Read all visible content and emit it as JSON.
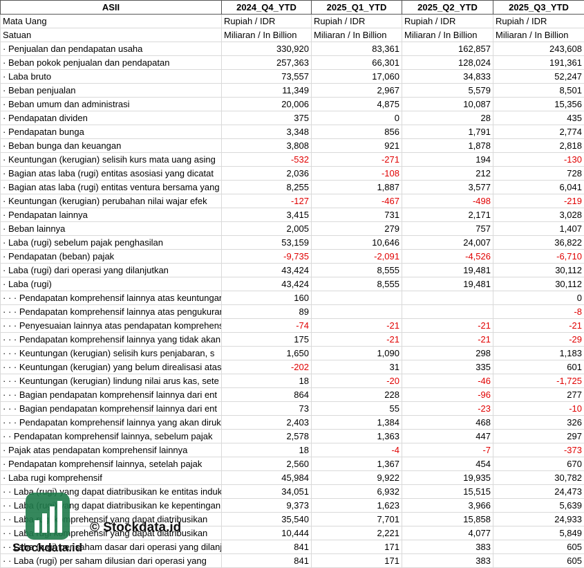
{
  "table": {
    "header": [
      "ASII",
      "2024_Q4_YTD",
      "2025_Q1_YTD",
      "2025_Q2_YTD",
      "2025_Q3_YTD"
    ],
    "rows": [
      {
        "label": "Mata Uang",
        "cells": [
          "Rupiah / IDR",
          "Rupiah / IDR",
          "Rupiah / IDR",
          "Rupiah / IDR"
        ]
      },
      {
        "label": "Satuan",
        "cells": [
          "Miliaran / In Billion",
          "Miliaran / In Billion",
          "Miliaran / In Billion",
          "Miliaran / In Billion"
        ]
      },
      {
        "label": "· Penjualan dan pendapatan usaha",
        "cells": [
          "330,920",
          "83,361",
          "162,857",
          "243,608"
        ]
      },
      {
        "label": "· Beban pokok penjualan dan pendapatan",
        "cells": [
          "257,363",
          "66,301",
          "128,024",
          "191,361"
        ]
      },
      {
        "label": "· Laba bruto",
        "cells": [
          "73,557",
          "17,060",
          "34,833",
          "52,247"
        ]
      },
      {
        "label": "· Beban penjualan",
        "cells": [
          "11,349",
          "2,967",
          "5,579",
          "8,501"
        ]
      },
      {
        "label": "· Beban umum dan administrasi",
        "cells": [
          "20,006",
          "4,875",
          "10,087",
          "15,356"
        ]
      },
      {
        "label": "· Pendapatan dividen",
        "cells": [
          "375",
          "0",
          "28",
          "435"
        ]
      },
      {
        "label": "· Pendapatan bunga",
        "cells": [
          "3,348",
          "856",
          "1,791",
          "2,774"
        ]
      },
      {
        "label": "· Beban bunga dan keuangan",
        "cells": [
          "3,808",
          "921",
          "1,878",
          "2,818"
        ]
      },
      {
        "label": "· Keuntungan (kerugian) selisih kurs mata uang asing",
        "cells": [
          "-532",
          "-271",
          "194",
          "-130"
        ]
      },
      {
        "label": "· Bagian atas laba (rugi) entitas asosiasi yang dicatat",
        "cells": [
          "2,036",
          "-108",
          "212",
          "728"
        ]
      },
      {
        "label": "· Bagian atas laba (rugi) entitas ventura bersama yang",
        "cells": [
          "8,255",
          "1,887",
          "3,577",
          "6,041"
        ]
      },
      {
        "label": "· Keuntungan (kerugian) perubahan nilai wajar efek",
        "cells": [
          "-127",
          "-467",
          "-498",
          "-219"
        ]
      },
      {
        "label": "· Pendapatan lainnya",
        "cells": [
          "3,415",
          "731",
          "2,171",
          "3,028"
        ]
      },
      {
        "label": "· Beban lainnya",
        "cells": [
          "2,005",
          "279",
          "757",
          "1,407"
        ]
      },
      {
        "label": "· Laba (rugi) sebelum pajak penghasilan",
        "cells": [
          "53,159",
          "10,646",
          "24,007",
          "36,822"
        ]
      },
      {
        "label": "· Pendapatan (beban) pajak",
        "cells": [
          "-9,735",
          "-2,091",
          "-4,526",
          "-6,710"
        ]
      },
      {
        "label": "· Laba (rugi) dari operasi yang dilanjutkan",
        "cells": [
          "43,424",
          "8,555",
          "19,481",
          "30,112"
        ]
      },
      {
        "label": "· Laba (rugi)",
        "cells": [
          "43,424",
          "8,555",
          "19,481",
          "30,112"
        ]
      },
      {
        "label": "· · · Pendapatan komprehensif lainnya atas keuntungan",
        "cells": [
          "160",
          null,
          null,
          "0"
        ]
      },
      {
        "label": "· · · Pendapatan komprehensif lainnya atas pengukuran",
        "cells": [
          "89",
          null,
          null,
          "-8"
        ]
      },
      {
        "label": "· · · Penyesuaian lainnya atas pendapatan komprehensif",
        "cells": [
          "-74",
          "-21",
          "-21",
          "-21"
        ]
      },
      {
        "label": "· · · Pendapatan komprehensif lainnya yang tidak akan",
        "cells": [
          "175",
          "-21",
          "-21",
          "-29"
        ]
      },
      {
        "label": "· · · Keuntungan (kerugian) selisih kurs penjabaran, s",
        "cells": [
          "1,650",
          "1,090",
          "298",
          "1,183"
        ]
      },
      {
        "label": "· · · Keuntungan (kerugian) yang belum direalisasi atas",
        "cells": [
          "-202",
          "31",
          "335",
          "601"
        ]
      },
      {
        "label": "· · · Keuntungan (kerugian) lindung nilai arus kas, sete",
        "cells": [
          "18",
          "-20",
          "-46",
          "-1,725"
        ]
      },
      {
        "label": "· · · Bagian pendapatan komprehensif lainnya dari ent",
        "cells": [
          "864",
          "228",
          "-96",
          "277"
        ]
      },
      {
        "label": "· · · Bagian pendapatan komprehensif lainnya dari ent",
        "cells": [
          "73",
          "55",
          "-23",
          "-10"
        ]
      },
      {
        "label": "· · · Pendapatan komprehensif lainnya yang akan dirukl",
        "cells": [
          "2,403",
          "1,384",
          "468",
          "326"
        ]
      },
      {
        "label": "· · Pendapatan komprehensif lainnya, sebelum pajak",
        "cells": [
          "2,578",
          "1,363",
          "447",
          "297"
        ]
      },
      {
        "label": "· Pajak atas pendapatan komprehensif lainnya",
        "cells": [
          "18",
          "-4",
          "-7",
          "-373"
        ]
      },
      {
        "label": "· Pendapatan komprehensif lainnya, setelah pajak",
        "cells": [
          "2,560",
          "1,367",
          "454",
          "670"
        ]
      },
      {
        "label": "· Laba rugi komprehensif",
        "cells": [
          "45,984",
          "9,922",
          "19,935",
          "30,782"
        ]
      },
      {
        "label": "· · Laba (rugi) yang dapat diatribusikan ke entitas induk",
        "cells": [
          "34,051",
          "6,932",
          "15,515",
          "24,473"
        ]
      },
      {
        "label": "· · Laba (rugi) yang dapat diatribusikan ke kepentingan",
        "cells": [
          "9,373",
          "1,623",
          "3,966",
          "5,639"
        ]
      },
      {
        "label": "· · Laba rugi komprehensif yang dapat diatribusikan",
        "cells": [
          "35,540",
          "7,701",
          "15,858",
          "24,933"
        ]
      },
      {
        "label": "· · Laba rugi komprehensif yang dapat diatribusikan",
        "cells": [
          "10,444",
          "2,221",
          "4,077",
          "5,849"
        ]
      },
      {
        "label": "· · Laba (rugi) per saham dasar dari operasi yang dilanjutkan",
        "cells": [
          "841",
          "171",
          "383",
          "605"
        ]
      },
      {
        "label": "· · Laba (rugi) per saham dilusian dari operasi yang",
        "cells": [
          "841",
          "171",
          "383",
          "605"
        ]
      }
    ]
  },
  "watermark": {
    "caption": "© Stockdata.id",
    "logo_text": "Stockdata.id"
  }
}
